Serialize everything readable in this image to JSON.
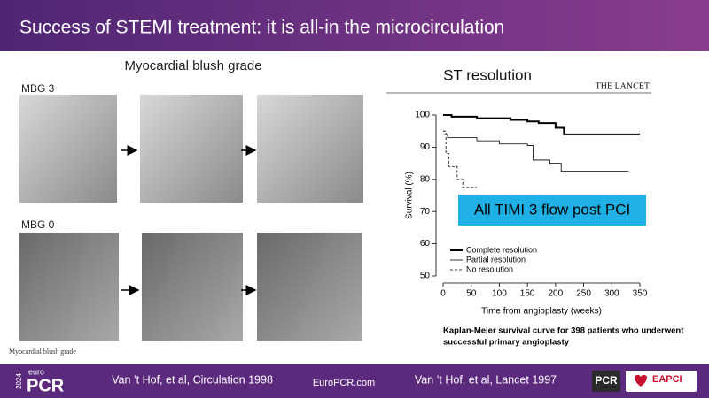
{
  "header": {
    "title": "Success of STEMI treatment: it is all-in the microcirculation"
  },
  "left_panel": {
    "title": "Myocardial blush grade",
    "top_label": "MBG 3",
    "bottom_label": "MBG 0",
    "caption": "Myocardial blush grade"
  },
  "right_panel": {
    "title": "ST resolution",
    "journal": "THE LANCET",
    "callout": "All TIMI 3 flow post PCI",
    "caption_lines": [
      "Kaplan-Meier survival curve for 398 patients who underwent",
      "successful primary angioplasty"
    ]
  },
  "chart_data": {
    "type": "line",
    "x_label": "Time from angioplasty (weeks)",
    "y_label": "Survival (%)",
    "xlim": [
      0,
      350
    ],
    "ylim": [
      50,
      100
    ],
    "xticks": [
      0,
      50,
      100,
      150,
      200,
      250,
      300,
      350
    ],
    "yticks": [
      50,
      60,
      70,
      80,
      90,
      100
    ],
    "legend": "bottom-left",
    "series": [
      {
        "name": "Complete resolution",
        "color": "#000000",
        "line_width": 2,
        "dashed": false,
        "x": [
          0,
          15,
          15,
          60,
          60,
          120,
          120,
          150,
          150,
          170,
          170,
          200,
          200,
          215,
          215,
          350
        ],
        "values": [
          100,
          100,
          99.5,
          99.5,
          99,
          99,
          98.5,
          98.5,
          98,
          98,
          97.5,
          97.5,
          96,
          96,
          94,
          94
        ]
      },
      {
        "name": "Partial resolution",
        "color": "#000000",
        "line_width": 0.8,
        "dashed": false,
        "x": [
          0,
          8,
          8,
          60,
          60,
          100,
          100,
          150,
          150,
          160,
          160,
          190,
          190,
          210,
          210,
          330
        ],
        "values": [
          94,
          94,
          93,
          93,
          92,
          92,
          91,
          91,
          90.5,
          90.5,
          86,
          86,
          85,
          85,
          82.5,
          82.5
        ]
      },
      {
        "name": "No resolution",
        "color": "#000000",
        "line_width": 0.8,
        "dashed": true,
        "x": [
          0,
          5,
          5,
          10,
          10,
          25,
          25,
          35,
          35,
          60
        ],
        "values": [
          95,
          95,
          88,
          88,
          84,
          84,
          80,
          80,
          77.5,
          77.5
        ]
      }
    ]
  },
  "footer": {
    "year": "2024",
    "logo_small": "euro",
    "logo": "PCR",
    "ref_left": "Van ’t Hof, et al, Circulation 1998",
    "site": "EuroPCR.com",
    "ref_right": "Van ’t Hof, et al, Lancet 1997",
    "badge": "PCR",
    "eapci": "EAPCI"
  }
}
